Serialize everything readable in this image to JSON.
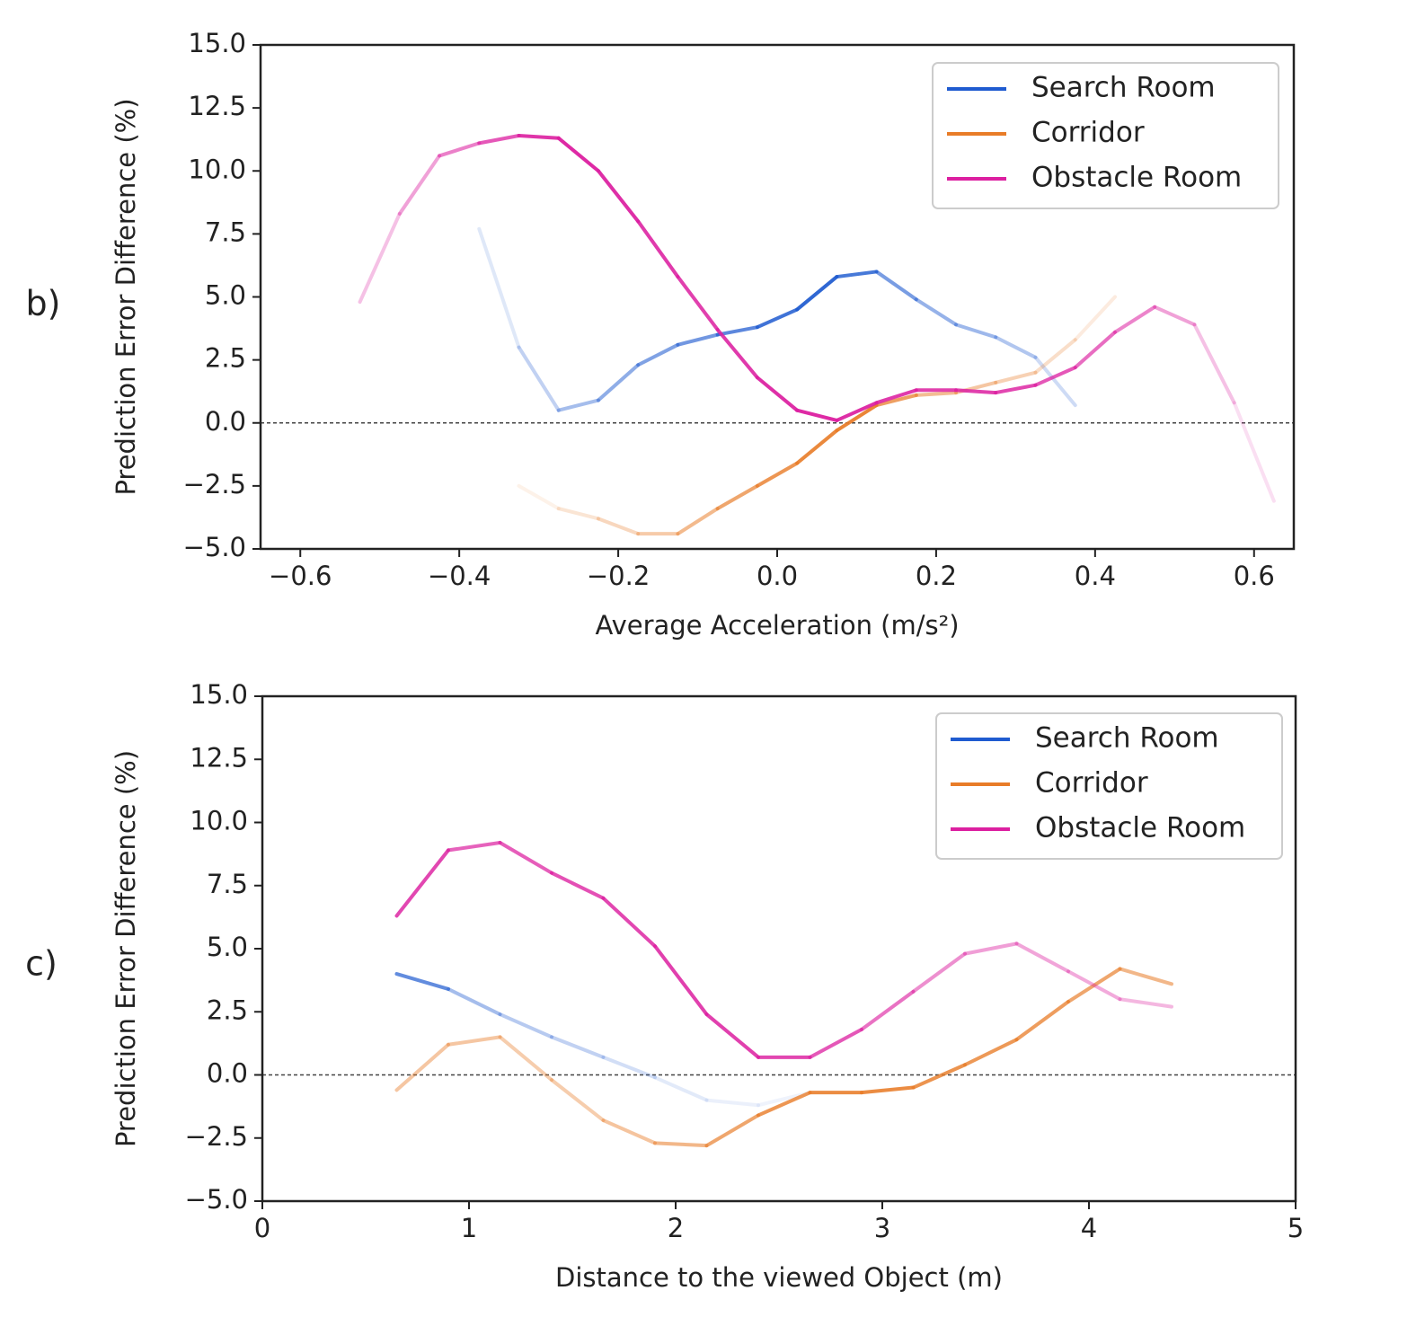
{
  "chart_data": [
    {
      "panel_label": "b)",
      "type": "line",
      "xlabel": "Average Acceleration (m/s²)",
      "ylabel": "Prediction Error Difference (%)",
      "xlim": [
        -0.65,
        0.65
      ],
      "ylim": [
        -5.0,
        15.0
      ],
      "xticks": [
        -0.6,
        -0.4,
        -0.2,
        0.0,
        0.2,
        0.4,
        0.6
      ],
      "xtick_labels": [
        "−0.6",
        "−0.4",
        "−0.2",
        "0.0",
        "0.2",
        "0.4",
        "0.6"
      ],
      "yticks": [
        -5.0,
        -2.5,
        0.0,
        2.5,
        5.0,
        7.5,
        10.0,
        12.5,
        15.0
      ],
      "ytick_labels": [
        "−5.0",
        "−2.5",
        "0.0",
        "2.5",
        "5.0",
        "7.5",
        "10.0",
        "12.5",
        "15.0"
      ],
      "reference_line": 0.0,
      "legend_position": "top-right",
      "series": [
        {
          "name": "Search Room",
          "color": "#1f5bd0",
          "x": [
            -0.375,
            -0.325,
            -0.275,
            -0.225,
            -0.175,
            -0.125,
            -0.075,
            -0.025,
            0.025,
            0.075,
            0.125,
            0.175,
            0.225,
            0.275,
            0.325,
            0.375
          ],
          "y": [
            7.7,
            3.0,
            0.5,
            0.9,
            2.3,
            3.1,
            3.5,
            3.8,
            4.5,
            5.8,
            6.0,
            4.9,
            3.9,
            3.4,
            2.6,
            0.7
          ],
          "opacity": [
            0.08,
            0.2,
            0.35,
            0.45,
            0.55,
            0.6,
            0.65,
            0.8,
            0.9,
            0.95,
            0.7,
            0.5,
            0.45,
            0.4,
            0.3,
            0.15
          ]
        },
        {
          "name": "Corridor",
          "color": "#e87c28",
          "x": [
            -0.325,
            -0.275,
            -0.225,
            -0.175,
            -0.125,
            -0.075,
            -0.025,
            0.025,
            0.075,
            0.125,
            0.175,
            0.225,
            0.275,
            0.325,
            0.375,
            0.425
          ],
          "y": [
            -2.5,
            -3.4,
            -3.8,
            -4.4,
            -4.4,
            -3.4,
            -2.5,
            -1.6,
            -0.3,
            0.7,
            1.1,
            1.2,
            1.6,
            2.0,
            3.3,
            5.0
          ],
          "opacity": [
            0.05,
            0.15,
            0.25,
            0.35,
            0.45,
            0.6,
            0.75,
            0.85,
            0.95,
            0.9,
            0.55,
            0.45,
            0.4,
            0.3,
            0.2,
            0.1
          ]
        },
        {
          "name": "Obstacle Room",
          "color": "#dc1fa0",
          "x": [
            -0.525,
            -0.475,
            -0.425,
            -0.375,
            -0.325,
            -0.275,
            -0.225,
            -0.175,
            -0.125,
            -0.075,
            -0.025,
            0.025,
            0.075,
            0.125,
            0.175,
            0.225,
            0.275,
            0.325,
            0.375,
            0.425,
            0.475,
            0.525,
            0.575,
            0.625
          ],
          "y": [
            4.8,
            8.3,
            10.6,
            11.1,
            11.4,
            11.3,
            10.0,
            8.0,
            5.8,
            3.7,
            1.8,
            0.5,
            0.1,
            0.8,
            1.3,
            1.3,
            1.2,
            1.5,
            2.2,
            3.6,
            4.6,
            3.9,
            0.8,
            -3.1
          ],
          "opacity": [
            0.2,
            0.35,
            0.5,
            0.65,
            0.85,
            0.95,
            0.95,
            0.9,
            0.85,
            0.85,
            0.9,
            0.95,
            0.95,
            0.9,
            0.85,
            0.85,
            0.85,
            0.8,
            0.7,
            0.6,
            0.5,
            0.35,
            0.2,
            0.08
          ]
        }
      ]
    },
    {
      "panel_label": "c)",
      "type": "line",
      "xlabel": "Distance to the viewed Object (m)",
      "ylabel": "Prediction Error Difference (%)",
      "xlim": [
        0,
        5
      ],
      "ylim": [
        -5.0,
        15.0
      ],
      "xticks": [
        0,
        1,
        2,
        3,
        4,
        5
      ],
      "xtick_labels": [
        "0",
        "1",
        "2",
        "3",
        "4",
        "5"
      ],
      "yticks": [
        -5.0,
        -2.5,
        0.0,
        2.5,
        5.0,
        7.5,
        10.0,
        12.5,
        15.0
      ],
      "ytick_labels": [
        "−5.0",
        "−2.5",
        "0.0",
        "2.5",
        "5.0",
        "7.5",
        "10.0",
        "12.5",
        "15.0"
      ],
      "reference_line": 0.0,
      "legend_position": "top-right",
      "series": [
        {
          "name": "Search Room",
          "color": "#1f5bd0",
          "x": [
            0.65,
            0.9,
            1.15,
            1.4,
            1.65,
            1.9,
            2.15,
            2.4,
            2.65
          ],
          "y": [
            4.0,
            3.4,
            2.4,
            1.5,
            0.7,
            -0.1,
            -1.0,
            -1.2,
            -0.7
          ],
          "opacity": [
            0.95,
            0.45,
            0.35,
            0.3,
            0.25,
            0.15,
            0.1,
            0.08,
            0.05
          ]
        },
        {
          "name": "Corridor",
          "color": "#e87c28",
          "x": [
            0.65,
            0.9,
            1.15,
            1.4,
            1.65,
            1.9,
            2.15,
            2.4,
            2.65,
            2.9,
            3.15,
            3.4,
            3.65,
            3.9,
            4.15,
            4.4
          ],
          "y": [
            -0.6,
            1.2,
            1.5,
            -0.2,
            -1.8,
            -2.7,
            -2.8,
            -1.6,
            -0.7,
            -0.7,
            -0.5,
            0.4,
            1.4,
            2.9,
            4.2,
            3.6
          ],
          "opacity": [
            0.4,
            0.45,
            0.4,
            0.35,
            0.4,
            0.5,
            0.6,
            0.75,
            0.85,
            0.9,
            0.85,
            0.8,
            0.75,
            0.75,
            0.6,
            0.5
          ]
        },
        {
          "name": "Obstacle Room",
          "color": "#dc1fa0",
          "x": [
            0.65,
            0.9,
            1.15,
            1.4,
            1.65,
            1.9,
            2.15,
            2.4,
            2.65,
            2.9,
            3.15,
            3.4,
            3.65,
            3.9,
            4.15,
            4.4
          ],
          "y": [
            6.3,
            8.9,
            9.2,
            8.0,
            7.0,
            5.1,
            2.4,
            0.7,
            0.7,
            1.8,
            3.3,
            4.8,
            5.2,
            4.1,
            3.0,
            2.7
          ],
          "opacity": [
            0.95,
            0.7,
            0.7,
            0.75,
            0.8,
            0.85,
            0.85,
            0.85,
            0.8,
            0.7,
            0.55,
            0.45,
            0.4,
            0.4,
            0.35,
            0.3
          ]
        }
      ]
    }
  ]
}
